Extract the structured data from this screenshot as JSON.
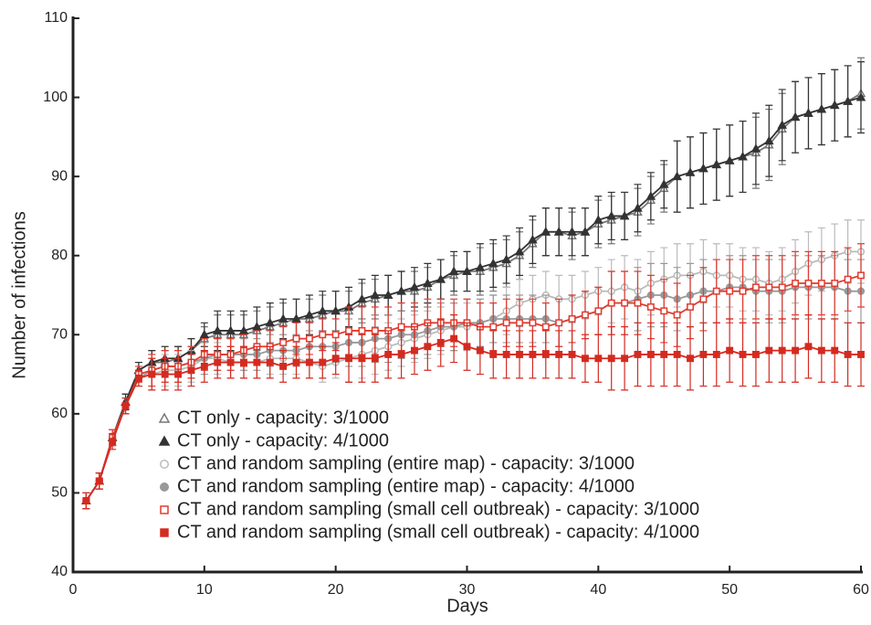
{
  "chart_data": {
    "type": "line",
    "x_label": "Days",
    "y_label": "Number of infections",
    "xlim": [
      0,
      60
    ],
    "xticks": [
      0,
      10,
      20,
      30,
      40,
      50,
      60
    ],
    "ylim": [
      40,
      110
    ],
    "yticks": [
      40,
      50,
      60,
      70,
      80,
      90,
      100,
      110
    ],
    "grid": false,
    "legend": "lower right",
    "x": [
      1,
      2,
      3,
      4,
      5,
      6,
      7,
      8,
      9,
      10,
      11,
      12,
      13,
      14,
      15,
      16,
      17,
      18,
      19,
      20,
      21,
      22,
      23,
      24,
      25,
      26,
      27,
      28,
      29,
      30,
      31,
      32,
      33,
      34,
      35,
      36,
      37,
      38,
      39,
      40,
      41,
      42,
      43,
      44,
      45,
      46,
      47,
      48,
      49,
      50,
      51,
      52,
      53,
      54,
      55,
      56,
      57,
      58,
      59,
      60
    ],
    "series": [
      {
        "name": "CT only - capacity: 3/1000",
        "color": "#777777",
        "marker": "triangle",
        "filled": false,
        "values": [
          49,
          51.5,
          57,
          61.5,
          65.5,
          66.5,
          66.5,
          67,
          68,
          69.5,
          70,
          70,
          70,
          70.5,
          71,
          71.5,
          72,
          72,
          72.5,
          73,
          73,
          74,
          74.5,
          75,
          75.5,
          75.5,
          76,
          77,
          77.5,
          78,
          78,
          78.5,
          79,
          80,
          81.5,
          83,
          83,
          82.5,
          83,
          84,
          84.5,
          85,
          85.5,
          87,
          88.5,
          90,
          90.5,
          91,
          91.5,
          92,
          92.5,
          93,
          94,
          96,
          97.5,
          98,
          98.5,
          99,
          99.5,
          100.5
        ],
        "errors": [
          1,
          1,
          1,
          1,
          1,
          1.5,
          1.5,
          1.5,
          1.5,
          1.5,
          2.5,
          2.5,
          2.5,
          2.5,
          2.5,
          2.5,
          2.5,
          2.5,
          2.5,
          2.5,
          2.5,
          2.5,
          2.5,
          2.5,
          2.5,
          2.5,
          2.5,
          2.5,
          2.5,
          2.5,
          3,
          3,
          3,
          3,
          3,
          3,
          3,
          3,
          3,
          3,
          3,
          3,
          3,
          3,
          3,
          4.5,
          4.5,
          4.5,
          4.5,
          4.5,
          4.5,
          4.5,
          4.5,
          4.5,
          4.5,
          4.5,
          4.5,
          4.5,
          4.5,
          4.5
        ]
      },
      {
        "name": "CT only - capacity: 4/1000",
        "color": "#333333",
        "marker": "triangle",
        "filled": true,
        "values": [
          49,
          51.5,
          57,
          61.5,
          65.5,
          66.5,
          67,
          67,
          68,
          70,
          70.5,
          70.5,
          70.5,
          71,
          71.5,
          72,
          72,
          72.5,
          73,
          73,
          73.5,
          74.5,
          75,
          75,
          75.5,
          76,
          76.5,
          77,
          78,
          78,
          78.5,
          79,
          79.5,
          80.5,
          82,
          83,
          83,
          83,
          83,
          84.5,
          85,
          85,
          86,
          87.5,
          89,
          90,
          90.5,
          91,
          91.5,
          92,
          92.5,
          93.5,
          94.5,
          96.5,
          97.5,
          98,
          98.5,
          99,
          99.5,
          100
        ],
        "errors": [
          1,
          1,
          1,
          1,
          1,
          1.5,
          1.5,
          1.5,
          1.5,
          1.5,
          2.5,
          2.5,
          2.5,
          2.5,
          2.5,
          2.5,
          2.5,
          2.5,
          2.5,
          2.5,
          2.5,
          2.5,
          2.5,
          2.5,
          2.5,
          2.5,
          2.5,
          2.5,
          2.5,
          2.5,
          3,
          3,
          3,
          3,
          3,
          3,
          3,
          3,
          3,
          3,
          3,
          3,
          3,
          3,
          3,
          4.5,
          4.5,
          4.5,
          4.5,
          4.5,
          4.5,
          4.5,
          4.5,
          4.5,
          4.5,
          4.5,
          4.5,
          4.5,
          4.5,
          4.5
        ]
      },
      {
        "name": "CT and random sampling (entire map) - capacity: 3/1000",
        "color": "#bbbbbb",
        "marker": "circle",
        "filled": false,
        "values": [
          49,
          51.5,
          57,
          61,
          64.5,
          65,
          65.5,
          65.5,
          66,
          67,
          67,
          66.5,
          66.5,
          66.5,
          67,
          67,
          67,
          66.5,
          66,
          66.5,
          67,
          67.5,
          68,
          68.5,
          69,
          69.5,
          70,
          70.5,
          71,
          71,
          71.5,
          72,
          73,
          74,
          74.5,
          75,
          74.5,
          74.5,
          75,
          75.5,
          75.5,
          76,
          75.5,
          76.5,
          77,
          77.5,
          77.5,
          78,
          77.5,
          77.5,
          77,
          77,
          76.5,
          77,
          78,
          79,
          79.5,
          80,
          80.5,
          80.5
        ],
        "errors": [
          1,
          1,
          1,
          1,
          1,
          2,
          2,
          2,
          2,
          2,
          2,
          2,
          2,
          2,
          2,
          2,
          2,
          2,
          2,
          2,
          3,
          3,
          3,
          3,
          3,
          3,
          3,
          3,
          3,
          3,
          3,
          3,
          3,
          3,
          3,
          3,
          3,
          3,
          3,
          3,
          4,
          4,
          4,
          4,
          4,
          4,
          4,
          4,
          4,
          4,
          4,
          4,
          4,
          4,
          4,
          4,
          4,
          4,
          4,
          4
        ]
      },
      {
        "name": "CT and random sampling (entire map) - capacity: 4/1000",
        "color": "#999999",
        "marker": "circle",
        "filled": true,
        "values": [
          49,
          51.5,
          57,
          61,
          64.5,
          65.5,
          66,
          66,
          66.5,
          67,
          67.5,
          67.5,
          67.5,
          67.5,
          68,
          68,
          68,
          68.5,
          68.5,
          68.5,
          69,
          69,
          69.5,
          69.5,
          70,
          70,
          70.5,
          71,
          71,
          71.5,
          71.5,
          72,
          72,
          72,
          72,
          72,
          71.5,
          72,
          72.5,
          73,
          74,
          74,
          74.5,
          75,
          75,
          74.5,
          75,
          75.5,
          75.5,
          76,
          76,
          75.5,
          75.5,
          75.5,
          76,
          76,
          76,
          76,
          75.5,
          75.5
        ],
        "errors": [
          1,
          1,
          1,
          1,
          1,
          2,
          2,
          2,
          2,
          2,
          2,
          2,
          2,
          2,
          2,
          2,
          2,
          2,
          2,
          2,
          3,
          3,
          3,
          3,
          3,
          3,
          3,
          3,
          3,
          3,
          3,
          3,
          3,
          3,
          3,
          3,
          3,
          3,
          3,
          3,
          4,
          4,
          4,
          4,
          4,
          4,
          4,
          4,
          4,
          4,
          4,
          4,
          4,
          4,
          4,
          4,
          4,
          4,
          4,
          4
        ]
      },
      {
        "name": "CT and random sampling (small cell outbreak) - capacity: 3/1000",
        "color": "#e03c31",
        "marker": "square",
        "filled": false,
        "values": [
          49,
          51.5,
          57,
          61,
          65,
          65.5,
          66,
          66,
          66.5,
          67.5,
          67.5,
          67.5,
          68,
          68.5,
          68.5,
          69,
          69.5,
          69.5,
          70,
          70,
          70.5,
          70.5,
          70.5,
          70.5,
          71,
          71,
          71.5,
          71.5,
          71.5,
          71.5,
          71,
          71,
          71.5,
          71.5,
          71.5,
          71,
          71.5,
          72,
          72.5,
          73,
          74,
          74,
          74,
          73.5,
          73,
          72.5,
          73.5,
          74.5,
          75.5,
          75.5,
          75.5,
          76,
          76,
          76,
          76.5,
          76.5,
          76.5,
          76.5,
          77,
          77.5
        ],
        "errors": [
          1,
          1,
          1,
          1,
          1,
          2,
          2,
          2,
          2,
          2,
          2,
          2,
          2,
          2,
          2,
          2,
          2,
          2,
          2,
          2,
          3,
          3,
          3,
          3,
          3,
          3,
          3,
          3,
          3,
          3,
          3,
          3,
          3,
          3,
          3,
          3,
          3,
          3,
          3,
          3,
          4,
          4,
          4,
          4,
          4,
          4,
          4,
          4,
          4,
          4,
          4,
          4,
          4,
          4,
          4,
          4,
          4,
          4,
          4,
          4
        ]
      },
      {
        "name": "CT and random sampling (small cell outbreak) - capacity: 4/1000",
        "color": "#d42a20",
        "marker": "square",
        "filled": true,
        "values": [
          49,
          51.5,
          56.5,
          61,
          64.5,
          65,
          65,
          65,
          65.5,
          66,
          66.5,
          66.5,
          66.5,
          66.5,
          66.5,
          66,
          66.5,
          66.5,
          66.5,
          67,
          67,
          67,
          67,
          67.5,
          67.5,
          68,
          68.5,
          69,
          69.5,
          68.5,
          68,
          67.5,
          67.5,
          67.5,
          67.5,
          67.5,
          67.5,
          67.5,
          67,
          67,
          67,
          67,
          67.5,
          67.5,
          67.5,
          67.5,
          67,
          67.5,
          67.5,
          68,
          67.5,
          67.5,
          68,
          68,
          68,
          68.5,
          68,
          68,
          67.5,
          67.5
        ],
        "errors": [
          1,
          1,
          1,
          1,
          1,
          2,
          2,
          2,
          2,
          2,
          2,
          2,
          2,
          2,
          2,
          2,
          2,
          2,
          2,
          2,
          3,
          3,
          3,
          3,
          3,
          3,
          3,
          3,
          3,
          3,
          3,
          3,
          3,
          3,
          3,
          3,
          3,
          3,
          3,
          3,
          4,
          4,
          4,
          4,
          4,
          4,
          4,
          4,
          4,
          4,
          4,
          4,
          4,
          4,
          4,
          4,
          4,
          4,
          4,
          4
        ]
      }
    ]
  }
}
